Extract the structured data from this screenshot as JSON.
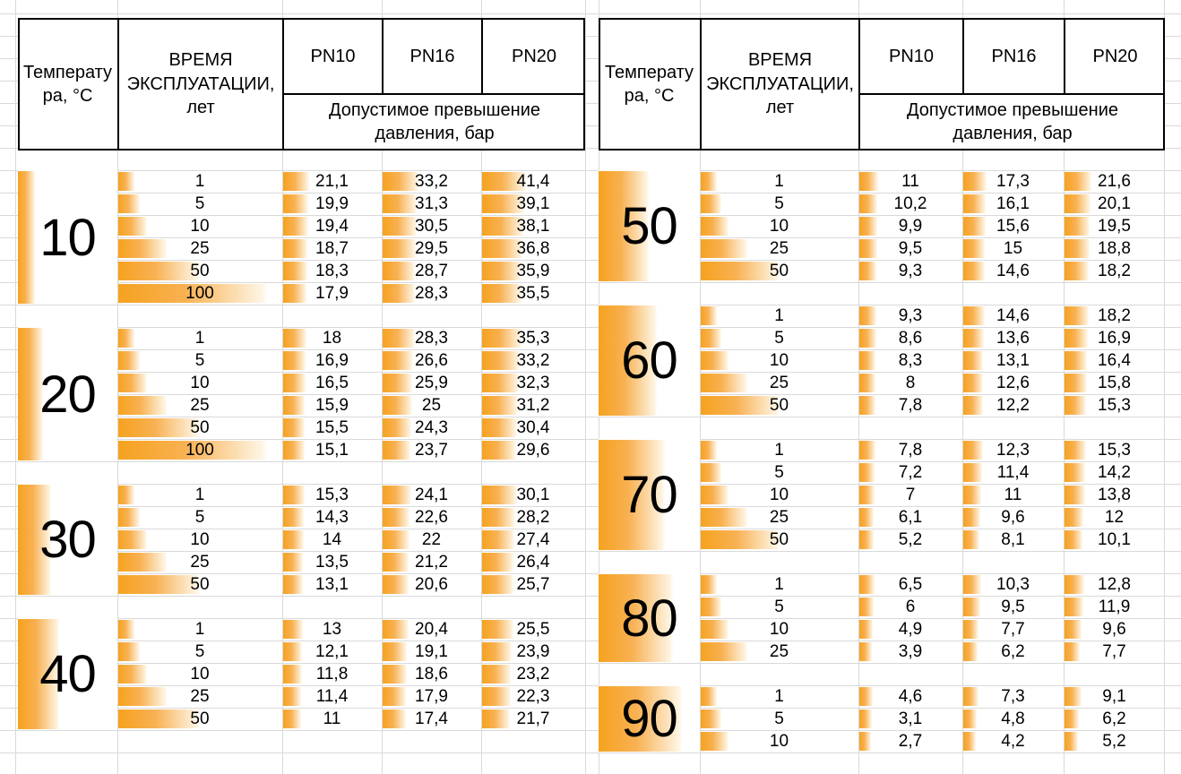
{
  "header": {
    "temperature_label_lines": [
      "Температу",
      "ра, °С"
    ],
    "time_label": "ВРЕМЯ ЭКСПЛУАТАЦИИ, лет",
    "pn_labels": [
      "PN10",
      "PN16",
      "PN20"
    ],
    "allowed_label": "Допустимое превышение давления, бар"
  },
  "colors": {
    "bar_solid": "#F6A21F",
    "bar_mid": "#F8B152",
    "bar_fade_end": "#FEF4E2",
    "gridline": "#D9D9D9",
    "table_border": "#000000",
    "text": "#000000",
    "background": "#FFFFFF"
  },
  "tables": [
    {
      "side": "left",
      "blocks": [
        {
          "temperature": "10",
          "rows": [
            {
              "years": "1",
              "pn10": "21,1",
              "pn16": "33,2",
              "pn20": "41,4"
            },
            {
              "years": "5",
              "pn10": "19,9",
              "pn16": "31,3",
              "pn20": "39,1"
            },
            {
              "years": "10",
              "pn10": "19,4",
              "pn16": "30,5",
              "pn20": "38,1"
            },
            {
              "years": "25",
              "pn10": "18,7",
              "pn16": "29,5",
              "pn20": "36,8"
            },
            {
              "years": "50",
              "pn10": "18,3",
              "pn16": "28,7",
              "pn20": "35,9"
            },
            {
              "years": "100",
              "pn10": "17,9",
              "pn16": "28,3",
              "pn20": "35,5"
            }
          ]
        },
        {
          "temperature": "20",
          "rows": [
            {
              "years": "1",
              "pn10": "18",
              "pn16": "28,3",
              "pn20": "35,3"
            },
            {
              "years": "5",
              "pn10": "16,9",
              "pn16": "26,6",
              "pn20": "33,2"
            },
            {
              "years": "10",
              "pn10": "16,5",
              "pn16": "25,9",
              "pn20": "32,3"
            },
            {
              "years": "25",
              "pn10": "15,9",
              "pn16": "25",
              "pn20": "31,2"
            },
            {
              "years": "50",
              "pn10": "15,5",
              "pn16": "24,3",
              "pn20": "30,4"
            },
            {
              "years": "100",
              "pn10": "15,1",
              "pn16": "23,7",
              "pn20": "29,6"
            }
          ]
        },
        {
          "temperature": "30",
          "rows": [
            {
              "years": "1",
              "pn10": "15,3",
              "pn16": "24,1",
              "pn20": "30,1"
            },
            {
              "years": "5",
              "pn10": "14,3",
              "pn16": "22,6",
              "pn20": "28,2"
            },
            {
              "years": "10",
              "pn10": "14",
              "pn16": "22",
              "pn20": "27,4"
            },
            {
              "years": "25",
              "pn10": "13,5",
              "pn16": "21,2",
              "pn20": "26,4"
            },
            {
              "years": "50",
              "pn10": "13,1",
              "pn16": "20,6",
              "pn20": "25,7"
            }
          ]
        },
        {
          "temperature": "40",
          "rows": [
            {
              "years": "1",
              "pn10": "13",
              "pn16": "20,4",
              "pn20": "25,5"
            },
            {
              "years": "5",
              "pn10": "12,1",
              "pn16": "19,1",
              "pn20": "23,9"
            },
            {
              "years": "10",
              "pn10": "11,8",
              "pn16": "18,6",
              "pn20": "23,2"
            },
            {
              "years": "25",
              "pn10": "11,4",
              "pn16": "17,9",
              "pn20": "22,3"
            },
            {
              "years": "50",
              "pn10": "11",
              "pn16": "17,4",
              "pn20": "21,7"
            }
          ]
        }
      ]
    },
    {
      "side": "right",
      "blocks": [
        {
          "temperature": "50",
          "rows": [
            {
              "years": "1",
              "pn10": "11",
              "pn16": "17,3",
              "pn20": "21,6"
            },
            {
              "years": "5",
              "pn10": "10,2",
              "pn16": "16,1",
              "pn20": "20,1"
            },
            {
              "years": "10",
              "pn10": "9,9",
              "pn16": "15,6",
              "pn20": "19,5"
            },
            {
              "years": "25",
              "pn10": "9,5",
              "pn16": "15",
              "pn20": "18,8"
            },
            {
              "years": "50",
              "pn10": "9,3",
              "pn16": "14,6",
              "pn20": "18,2"
            }
          ]
        },
        {
          "temperature": "60",
          "rows": [
            {
              "years": "1",
              "pn10": "9,3",
              "pn16": "14,6",
              "pn20": "18,2"
            },
            {
              "years": "5",
              "pn10": "8,6",
              "pn16": "13,6",
              "pn20": "16,9"
            },
            {
              "years": "10",
              "pn10": "8,3",
              "pn16": "13,1",
              "pn20": "16,4"
            },
            {
              "years": "25",
              "pn10": "8",
              "pn16": "12,6",
              "pn20": "15,8"
            },
            {
              "years": "50",
              "pn10": "7,8",
              "pn16": "12,2",
              "pn20": "15,3"
            }
          ]
        },
        {
          "temperature": "70",
          "rows": [
            {
              "years": "1",
              "pn10": "7,8",
              "pn16": "12,3",
              "pn20": "15,3"
            },
            {
              "years": "5",
              "pn10": "7,2",
              "pn16": "11,4",
              "pn20": "14,2"
            },
            {
              "years": "10",
              "pn10": "7",
              "pn16": "11",
              "pn20": "13,8"
            },
            {
              "years": "25",
              "pn10": "6,1",
              "pn16": "9,6",
              "pn20": "12"
            },
            {
              "years": "50",
              "pn10": "5,2",
              "pn16": "8,1",
              "pn20": "10,1"
            }
          ]
        },
        {
          "temperature": "80",
          "rows": [
            {
              "years": "1",
              "pn10": "6,5",
              "pn16": "10,3",
              "pn20": "12,8"
            },
            {
              "years": "5",
              "pn10": "6",
              "pn16": "9,5",
              "pn20": "11,9"
            },
            {
              "years": "10",
              "pn10": "4,9",
              "pn16": "7,7",
              "pn20": "9,6"
            },
            {
              "years": "25",
              "pn10": "3,9",
              "pn16": "6,2",
              "pn20": "7,7"
            }
          ]
        },
        {
          "temperature": "90",
          "rows": [
            {
              "years": "1",
              "pn10": "4,6",
              "pn16": "7,3",
              "pn20": "9,1"
            },
            {
              "years": "5",
              "pn10": "3,1",
              "pn16": "4,8",
              "pn20": "6,2"
            },
            {
              "years": "10",
              "pn10": "2,7",
              "pn16": "4,2",
              "pn20": "5,2"
            }
          ]
        }
      ]
    }
  ]
}
